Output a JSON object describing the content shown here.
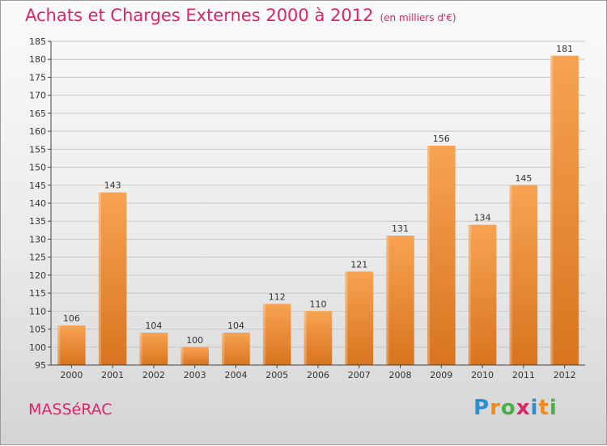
{
  "header": {
    "title": "Achats et Charges Externes 2000 à 2012",
    "unit": "(en milliers d'€)"
  },
  "footer": {
    "commune": "MASSéRAC",
    "logo": "Proxiti"
  },
  "colors": {
    "title": "#e0246a",
    "bar_top": "#f7a352",
    "bar_bottom": "#d8741f"
  },
  "chart_data": {
    "type": "bar",
    "categories": [
      "2000",
      "2001",
      "2002",
      "2003",
      "2004",
      "2005",
      "2006",
      "2007",
      "2008",
      "2009",
      "2010",
      "2011",
      "2012"
    ],
    "values": [
      106,
      143,
      104,
      100,
      104,
      112,
      110,
      121,
      131,
      156,
      134,
      145,
      181
    ],
    "ylim": [
      95,
      185
    ],
    "yticks": [
      95,
      100,
      105,
      110,
      115,
      120,
      125,
      130,
      135,
      140,
      145,
      150,
      155,
      160,
      165,
      170,
      175,
      180,
      185
    ],
    "grid": true
  }
}
